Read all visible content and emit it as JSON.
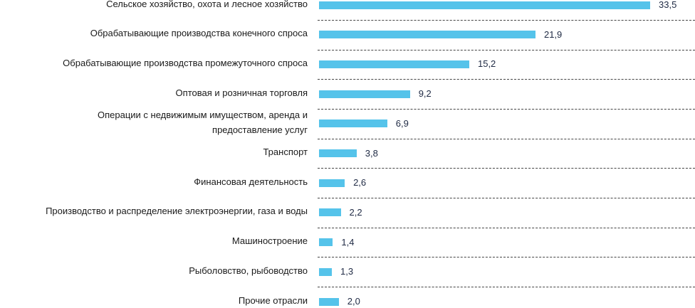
{
  "chart_data": {
    "type": "bar",
    "orientation": "horizontal",
    "categories": [
      "Сельское хозяйство, охота и лесное хозяйство",
      "Обрабатывающие производства конечного спроса",
      "Обрабатывающие производства промежуточного спроса",
      "Оптовая и розничная торговля",
      "Операции с недвижимым имуществом, аренда и предоставление услуг",
      "Транспорт",
      "Финансовая деятельность",
      "Производство и распределение электроэнергии, газа и воды",
      "Машиностроение",
      "Рыболовство, рыбоводство",
      "Прочие отрасли"
    ],
    "category_lines": [
      [
        "Сельское хозяйство, охота и лесное хозяйство"
      ],
      [
        "Обрабатывающие производства конечного спроса"
      ],
      [
        "Обрабатывающие производства промежуточного спроса"
      ],
      [
        "Оптовая и розничная торговля"
      ],
      [
        "Операции с недвижимым имуществом, аренда и",
        "предоставление услуг"
      ],
      [
        "Транспорт"
      ],
      [
        "Финансовая деятельность"
      ],
      [
        "Производство и распределение электроэнергии, газа и воды"
      ],
      [
        "Машиностроение"
      ],
      [
        "Рыболовство, рыбоводство"
      ],
      [
        "Прочие отрасли"
      ]
    ],
    "values": [
      33.5,
      21.9,
      15.2,
      9.2,
      6.9,
      3.8,
      2.6,
      2.2,
      1.4,
      1.3,
      2.0
    ],
    "value_labels": [
      "33,5",
      "21,9",
      "15,2",
      "9,2",
      "6,9",
      "3,8",
      "2,6",
      "2,2",
      "1,4",
      "1,3",
      "2,0"
    ],
    "xlim": [
      0,
      33.5
    ],
    "color": "#55c3ea",
    "grid": false,
    "title": "",
    "xlabel": "",
    "ylabel": ""
  }
}
